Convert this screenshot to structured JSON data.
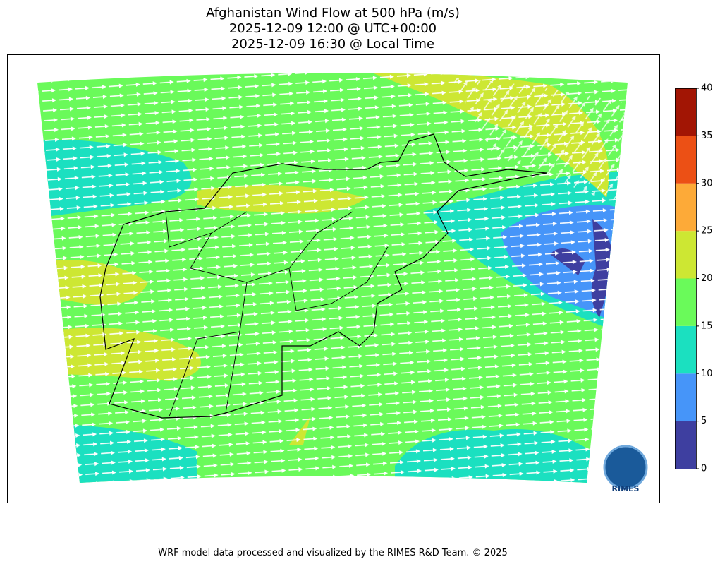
{
  "header": {
    "title_lines": [
      "Afghanistan Wind Flow at 500 hPa (m/s)",
      "2025-12-09 12:00 @ UTC+00:00",
      "2025-12-09 16:30 @ Local Time"
    ]
  },
  "colorbar": {
    "lim": [
      0,
      40
    ],
    "ticks": [
      0,
      5,
      10,
      15,
      20,
      25,
      30,
      35,
      40
    ],
    "colors": [
      "#3e3fa0",
      "#4695f9",
      "#1be0c0",
      "#6afa5a",
      "#cde733",
      "#fdaa38",
      "#ec5015",
      "#a21504"
    ]
  },
  "logo": {
    "text": "RIMES"
  },
  "footer": {
    "text": "WRF model data processed and visualized by the RIMES R&D Team. © 2025"
  }
}
